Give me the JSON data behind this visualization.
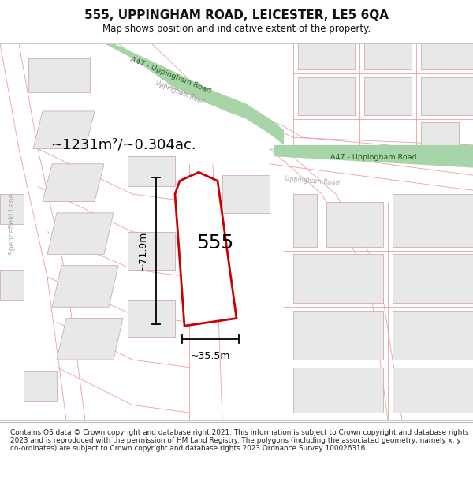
{
  "title": "555, UPPINGHAM ROAD, LEICESTER, LE5 6QA",
  "subtitle": "Map shows position and indicative extent of the property.",
  "footer": "Contains OS data © Crown copyright and database right 2021. This information is subject to Crown copyright and database rights 2023 and is reproduced with the permission of HM Land Registry. The polygons (including the associated geometry, namely x, y co-ordinates) are subject to Crown copyright and database rights 2023 Ordnance Survey 100026316.",
  "area_text": "~1231m²/~0.304ac.",
  "property_number": "555",
  "dim_width": "~35.5m",
  "dim_height": "~71.9m",
  "road_label_diag": "A47 - Uppingham Road",
  "road_label_horiz": "A47 - Uppingham Road",
  "road_label_uppingham_diag": "Uppingham Road",
  "road_label_uppingham_horiz": "Uppingham Road",
  "road_label_spencefield": "Spencefield Lane",
  "green_road_color": "#a8d5a8",
  "green_road_text_color": "#2d5a27",
  "road_line_color": "#e8a0a0",
  "property_outline_color": "#cc0000",
  "building_fill": "#e8e8e8",
  "building_stroke": "#c8a0a0",
  "map_bg": "#f5eeee"
}
